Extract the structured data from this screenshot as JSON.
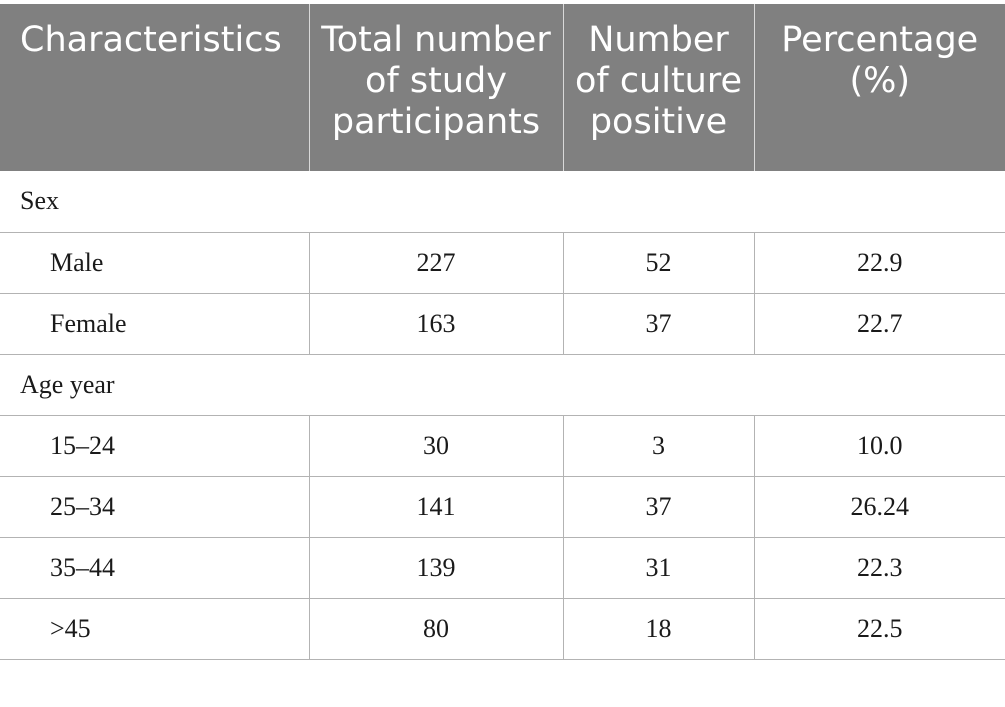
{
  "table": {
    "headers": [
      "Characteristics",
      "Total number of study participants",
      "Number of culture positive",
      "Percentage (%)"
    ],
    "groups": [
      {
        "title": "Sex",
        "rows": [
          [
            "Male",
            "227",
            "52",
            "22.9"
          ],
          [
            "Female",
            "163",
            "37",
            "22.7"
          ]
        ]
      },
      {
        "title": "Age year",
        "rows": [
          [
            "15–24",
            "30",
            "3",
            "10.0"
          ],
          [
            "25–34",
            "141",
            "37",
            "26.24"
          ],
          [
            "35–44",
            "139",
            "31",
            "22.3"
          ],
          [
            ">45",
            "80",
            "18",
            "22.5"
          ]
        ]
      }
    ]
  },
  "colors": {
    "header_bg": "#808080",
    "header_text": "#ffffff",
    "grid_line": "#b3b3b3"
  }
}
